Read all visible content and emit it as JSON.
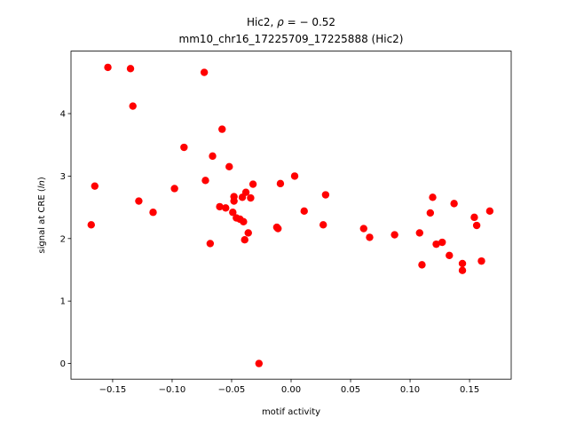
{
  "chart_data": {
    "type": "scatter",
    "title_line1_prefix": "Hic2, ",
    "title_line1_rho": "ρ",
    "title_line1_suffix": " = − 0.52",
    "title_line2": "mm10_chr16_17225709_17225888 (Hic2)",
    "xlabel": "motif activity",
    "ylabel_prefix": "signal at CRE (",
    "ylabel_italic": "ln",
    "ylabel_suffix": ")",
    "xlim": [
      -0.185,
      0.185
    ],
    "ylim": [
      -0.25,
      5.0
    ],
    "xticks": [
      -0.15,
      -0.1,
      -0.05,
      0.0,
      0.05,
      0.1,
      0.15
    ],
    "xtick_labels": [
      "−0.15",
      "−0.10",
      "−0.05",
      "0.00",
      "0.05",
      "0.10",
      "0.15"
    ],
    "yticks": [
      0,
      1,
      2,
      3,
      4
    ],
    "ytick_labels": [
      "0",
      "1",
      "2",
      "3",
      "4"
    ],
    "grid": false,
    "point_color": "#ff0000",
    "points": [
      [
        -0.168,
        2.22
      ],
      [
        -0.165,
        2.84
      ],
      [
        -0.154,
        4.74
      ],
      [
        -0.135,
        4.72
      ],
      [
        -0.133,
        4.12
      ],
      [
        -0.128,
        2.6
      ],
      [
        -0.116,
        2.42
      ],
      [
        -0.098,
        2.8
      ],
      [
        -0.09,
        3.46
      ],
      [
        -0.073,
        4.66
      ],
      [
        -0.072,
        2.93
      ],
      [
        -0.068,
        1.92
      ],
      [
        -0.066,
        3.32
      ],
      [
        -0.06,
        2.51
      ],
      [
        -0.058,
        3.75
      ],
      [
        -0.055,
        2.49
      ],
      [
        -0.052,
        3.15
      ],
      [
        -0.049,
        2.42
      ],
      [
        -0.048,
        2.6
      ],
      [
        -0.048,
        2.67
      ],
      [
        -0.046,
        2.33
      ],
      [
        -0.043,
        2.31
      ],
      [
        -0.041,
        2.66
      ],
      [
        -0.04,
        2.27
      ],
      [
        -0.039,
        1.98
      ],
      [
        -0.038,
        2.74
      ],
      [
        -0.036,
        2.09
      ],
      [
        -0.034,
        2.65
      ],
      [
        -0.032,
        2.87
      ],
      [
        -0.027,
        0.0
      ],
      [
        -0.012,
        2.18
      ],
      [
        -0.011,
        2.16
      ],
      [
        -0.009,
        2.88
      ],
      [
        0.003,
        3.0
      ],
      [
        0.011,
        2.44
      ],
      [
        0.027,
        2.22
      ],
      [
        0.029,
        2.7
      ],
      [
        0.061,
        2.16
      ],
      [
        0.066,
        2.02
      ],
      [
        0.087,
        2.06
      ],
      [
        0.108,
        2.09
      ],
      [
        0.11,
        1.58
      ],
      [
        0.117,
        2.41
      ],
      [
        0.119,
        2.66
      ],
      [
        0.122,
        1.91
      ],
      [
        0.127,
        1.94
      ],
      [
        0.133,
        1.73
      ],
      [
        0.137,
        2.56
      ],
      [
        0.144,
        1.6
      ],
      [
        0.144,
        1.49
      ],
      [
        0.154,
        2.34
      ],
      [
        0.156,
        2.21
      ],
      [
        0.16,
        1.64
      ],
      [
        0.167,
        2.44
      ]
    ]
  }
}
